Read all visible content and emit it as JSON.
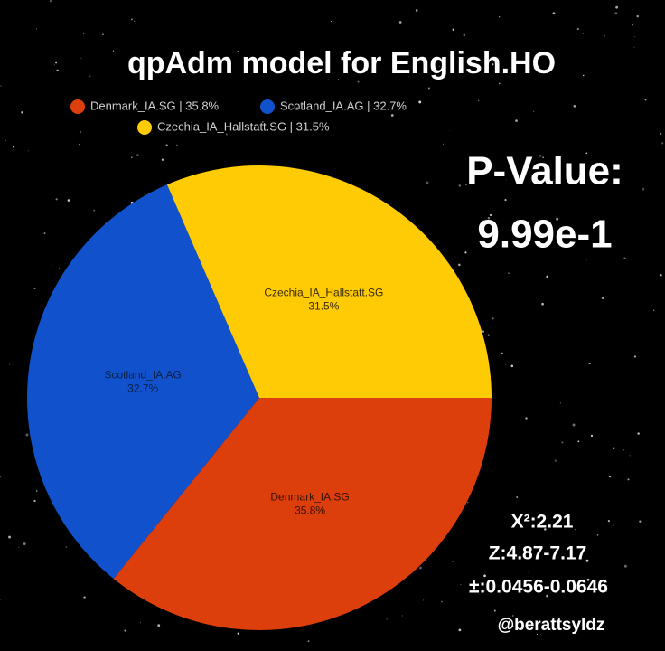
{
  "chart_data": {
    "type": "pie",
    "title": "qpAdm model for English.HO",
    "categories": [
      "Denmark_IA.SG",
      "Scotland_IA.AG",
      "Czechia_IA_Hallstatt.SG"
    ],
    "values": [
      35.8,
      32.7,
      31.5
    ],
    "value_labels": [
      "35.8%",
      "32.7%",
      "31.5%"
    ],
    "legend_labels": [
      "Denmark_IA.SG | 35.8%",
      "Scotland_IA.AG | 32.7%",
      "Czechia_IA_Hallstatt.SG | 31.5%"
    ],
    "colors": [
      "#dc3e0c",
      "#1152cc",
      "#ffcb05"
    ],
    "legend": "top",
    "annotations": [
      "P-Value:",
      "9.99e-1",
      "X²:2.21",
      "Z:4.87-7.17",
      "±:0.0456-0.0646",
      "@berattsyldz"
    ]
  }
}
